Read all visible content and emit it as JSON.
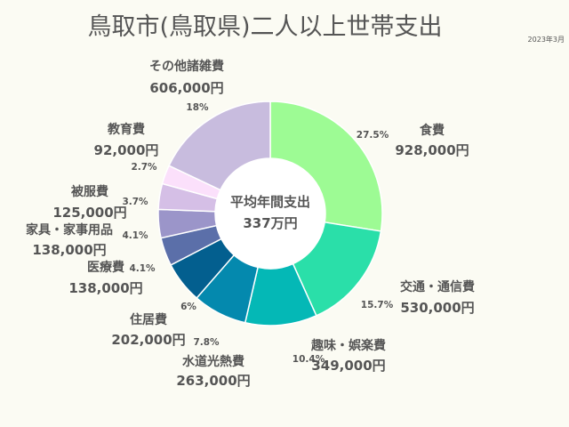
{
  "chart_data": {
    "type": "pie",
    "title": "鳥取市(鳥取県)二人以上世帯支出",
    "note": "2023年3月",
    "center_label": "平均年間支出",
    "center_value": "337万円",
    "slices": [
      {
        "category": "食費",
        "value_text": "928,000円",
        "value": 928000,
        "percent_text": "27.5%",
        "percent": 27.5,
        "color": "#9dfb94"
      },
      {
        "category": "交通・通信費",
        "value_text": "530,000円",
        "value": 530000,
        "percent_text": "15.7%",
        "percent": 15.7,
        "color": "#2adfa9"
      },
      {
        "category": "趣味・娯楽費",
        "value_text": "349,000円",
        "value": 349000,
        "percent_text": "10.4%",
        "percent": 10.4,
        "color": "#04b8b6"
      },
      {
        "category": "水道光熱費",
        "value_text": "263,000円",
        "value": 263000,
        "percent_text": "7.8%",
        "percent": 7.8,
        "color": "#0489ae"
      },
      {
        "category": "住居費",
        "value_text": "202,000円",
        "value": 202000,
        "percent_text": "6%",
        "percent": 6.0,
        "color": "#035f8f"
      },
      {
        "category": "医療費",
        "value_text": "138,000円",
        "value": 138000,
        "percent_text": "4.1%",
        "percent": 4.1,
        "color": "#5b6fa9"
      },
      {
        "category": "家具・家事用品",
        "value_text": "138,000円",
        "value": 138000,
        "percent_text": "4.1%",
        "percent": 4.1,
        "color": "#9b95c9"
      },
      {
        "category": "被服費",
        "value_text": "125,000円",
        "value": 125000,
        "percent_text": "3.7%",
        "percent": 3.7,
        "color": "#d5bfe6"
      },
      {
        "category": "教育費",
        "value_text": "92,000円",
        "value": 92000,
        "percent_text": "2.7%",
        "percent": 2.7,
        "color": "#fbe0fb"
      },
      {
        "category": "その他諸雑費",
        "value_text": "606,000円",
        "value": 606000,
        "percent_text": "18%",
        "percent": 18.0,
        "color": "#c8bcde"
      }
    ]
  }
}
